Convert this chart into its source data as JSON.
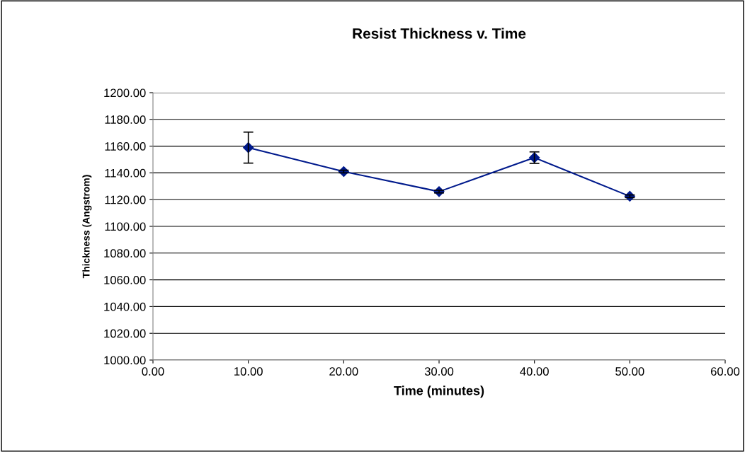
{
  "chart_data": {
    "type": "line",
    "title": "Resist Thickness v. Time",
    "xlabel": "Time (minutes)",
    "ylabel": "Thickness (Angstrom)",
    "x": [
      10,
      20,
      30,
      40,
      50
    ],
    "series": [
      {
        "color": "#001a8c",
        "values": [
          1158.9,
          1141.0,
          1126.0,
          1151.4,
          1122.5
        ],
        "errors": [
          11.6,
          1.0,
          1.0,
          4.3,
          1.0
        ]
      }
    ],
    "xlim": [
      0,
      60
    ],
    "xticks": [
      {
        "value": 0,
        "label": "0.00"
      },
      {
        "value": 10,
        "label": "10.00"
      },
      {
        "value": 20,
        "label": "20.00"
      },
      {
        "value": 30,
        "label": "30.00"
      },
      {
        "value": 40,
        "label": "40.00"
      },
      {
        "value": 50,
        "label": "50.00"
      },
      {
        "value": 60,
        "label": "60.00"
      }
    ],
    "ylim": [
      1000,
      1200
    ],
    "yticks": [
      {
        "value": 1000,
        "label": "1000.00"
      },
      {
        "value": 1020,
        "label": "1020.00"
      },
      {
        "value": 1040,
        "label": "1040.00"
      },
      {
        "value": 1060,
        "label": "1060.00"
      },
      {
        "value": 1080,
        "label": "1080.00"
      },
      {
        "value": 1100,
        "label": "1100.00"
      },
      {
        "value": 1120,
        "label": "1120.00"
      },
      {
        "value": 1140,
        "label": "1140.00"
      },
      {
        "value": 1160,
        "label": "1160.00"
      },
      {
        "value": 1180,
        "label": "1180.00"
      },
      {
        "value": 1200,
        "label": "1200.00"
      }
    ],
    "grid": "y",
    "marker": "diamond",
    "line_style": "solid"
  }
}
